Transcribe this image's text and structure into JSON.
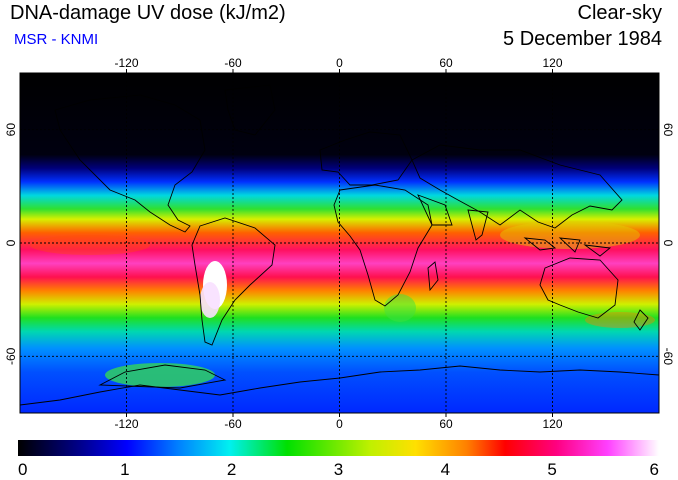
{
  "header": {
    "title": "DNA-damage UV dose (kJ/m2)",
    "subtitle": "MSR - KNMI",
    "condition": "Clear-sky",
    "date": "5 December 1984"
  },
  "map": {
    "lon_ticks": [
      "-120",
      "-60",
      "0",
      "60",
      "120"
    ],
    "lat_ticks": [
      "60",
      "0",
      "-60"
    ],
    "lon_values": [
      -120,
      -60,
      0,
      60,
      120
    ],
    "lat_values": [
      60,
      0,
      -60
    ],
    "extent": {
      "lon": [
        -180,
        180
      ],
      "lat": [
        -90,
        90
      ]
    }
  },
  "colorbar": {
    "labels": [
      "0",
      "1",
      "2",
      "3",
      "4",
      "5",
      "6"
    ],
    "min": 0,
    "max": 6
  },
  "colors": {
    "subtitle": "#0000ff",
    "night": "#000000",
    "low": "#0000ff",
    "mid": "#00c000",
    "high": "#ff0000",
    "peak": "#ff00ff",
    "max": "#ffffff"
  }
}
